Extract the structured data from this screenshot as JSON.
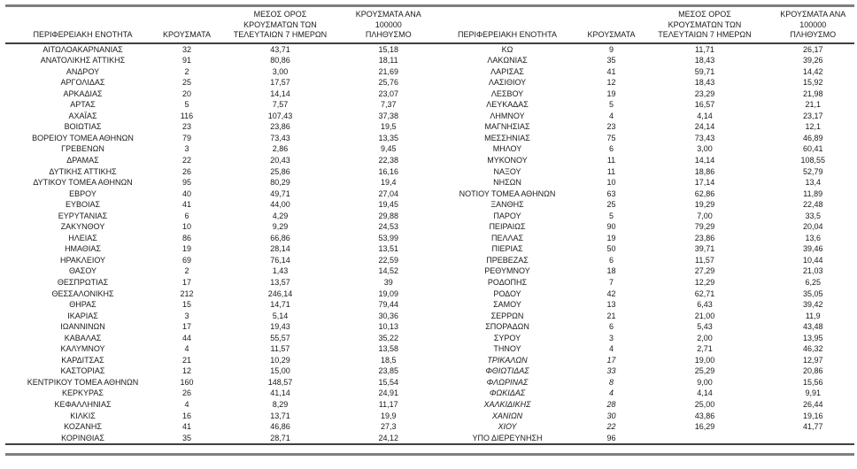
{
  "colors": {
    "outer_rule_gray": "#7f7f7f",
    "header_rule_dark": "#3f3f3f",
    "text": "#1a1a1a"
  },
  "columns": {
    "region": "ΠΕΡΙΦΕΡΕΙΑΚΗ ΕΝΟΤΗΤΑ",
    "cases": "ΚΡΟΥΣΜΑΤΑ",
    "avg7": "ΜΕΣΟΣ ΟΡΟΣ\nΚΡΟΥΣΜΑΤΩΝ ΤΩΝ\nΤΕΛΕΥΤΑΙΩΝ 7 ΗΜΕΡΩΝ",
    "per100k": "ΚΡΟΥΣΜΑΤΑ ΑΝΑ 100000\nΠΛΗΘΥΣΜΟ"
  },
  "tables": {
    "left": {
      "italic_row_indices": [],
      "rows": [
        [
          "ΑΙΤΩΛΟΑΚΑΡΝΑΝΙΑΣ",
          "32",
          "43,71",
          "15,18"
        ],
        [
          "ΑΝΑΤΟΛΙΚΗΣ ΑΤΤΙΚΗΣ",
          "91",
          "80,86",
          "18,11"
        ],
        [
          "ΑΝΔΡΟΥ",
          "2",
          "3,00",
          "21,69"
        ],
        [
          "ΑΡΓΟΛΙΔΑΣ",
          "25",
          "17,57",
          "25,76"
        ],
        [
          "ΑΡΚΑΔΙΑΣ",
          "20",
          "14,14",
          "23,07"
        ],
        [
          "ΑΡΤΑΣ",
          "5",
          "7,57",
          "7,37"
        ],
        [
          "ΑΧΑΪΑΣ",
          "116",
          "107,43",
          "37,38"
        ],
        [
          "ΒΟΙΩΤΙΑΣ",
          "23",
          "23,86",
          "19,5"
        ],
        [
          "ΒΟΡΕΙΟΥ ΤΟΜΕΑ ΑΘΗΝΩΝ",
          "79",
          "73,43",
          "13,35"
        ],
        [
          "ΓΡΕΒΕΝΩΝ",
          "3",
          "2,86",
          "9,45"
        ],
        [
          "ΔΡΑΜΑΣ",
          "22",
          "20,43",
          "22,38"
        ],
        [
          "ΔΥΤΙΚΗΣ ΑΤΤΙΚΗΣ",
          "26",
          "25,86",
          "16,16"
        ],
        [
          "ΔΥΤΙΚΟΥ ΤΟΜΕΑ ΑΘΗΝΩΝ",
          "95",
          "80,29",
          "19,4"
        ],
        [
          "ΕΒΡΟΥ",
          "40",
          "49,71",
          "27,04"
        ],
        [
          "ΕΥΒΟΙΑΣ",
          "41",
          "44,00",
          "19,45"
        ],
        [
          "ΕΥΡΥΤΑΝΙΑΣ",
          "6",
          "4,29",
          "29,88"
        ],
        [
          "ΖΑΚΥΝΘΟΥ",
          "10",
          "9,29",
          "24,53"
        ],
        [
          "ΗΛΕΙΑΣ",
          "86",
          "66,86",
          "53,99"
        ],
        [
          "ΗΜΑΘΙΑΣ",
          "19",
          "28,14",
          "13,51"
        ],
        [
          "ΗΡΑΚΛΕΙΟΥ",
          "69",
          "76,14",
          "22,59"
        ],
        [
          "ΘΑΣΟΥ",
          "2",
          "1,43",
          "14,52"
        ],
        [
          "ΘΕΣΠΡΩΤΙΑΣ",
          "17",
          "13,57",
          "39"
        ],
        [
          "ΘΕΣΣΑΛΟΝΙΚΗΣ",
          "212",
          "246,14",
          "19,09"
        ],
        [
          "ΘΗΡΑΣ",
          "15",
          "14,71",
          "79,44"
        ],
        [
          "ΙΚΑΡΙΑΣ",
          "3",
          "5,14",
          "30,36"
        ],
        [
          "ΙΩΑΝΝΙΝΩΝ",
          "17",
          "19,43",
          "10,13"
        ],
        [
          "ΚΑΒΑΛΑΣ",
          "44",
          "55,57",
          "35,22"
        ],
        [
          "ΚΑΛΥΜΝΟΥ",
          "4",
          "11,57",
          "13,58"
        ],
        [
          "ΚΑΡΔΙΤΣΑΣ",
          "21",
          "10,29",
          "18,5"
        ],
        [
          "ΚΑΣΤΟΡΙΑΣ",
          "12",
          "15,00",
          "23,85"
        ],
        [
          "ΚΕΝΤΡΙΚΟΥ ΤΟΜΕΑ ΑΘΗΝΩΝ",
          "160",
          "148,57",
          "15,54"
        ],
        [
          "ΚΕΡΚΥΡΑΣ",
          "26",
          "41,14",
          "24,91"
        ],
        [
          "ΚΕΦΑΛΛΗΝΙΑΣ",
          "4",
          "8,29",
          "11,17"
        ],
        [
          "ΚΙΛΚΙΣ",
          "16",
          "13,71",
          "19,9"
        ],
        [
          "ΚΟΖΑΝΗΣ",
          "41",
          "46,86",
          "27,3"
        ],
        [
          "ΚΟΡΙΝΘΙΑΣ",
          "35",
          "28,71",
          "24,12"
        ]
      ]
    },
    "right": {
      "italic_row_indices": [
        28,
        29,
        30,
        31,
        32,
        33,
        34
      ],
      "rows": [
        [
          "ΚΩ",
          "9",
          "11,71",
          "26,17"
        ],
        [
          "ΛΑΚΩΝΙΑΣ",
          "35",
          "18,43",
          "39,26"
        ],
        [
          "ΛΑΡΙΣΑΣ",
          "41",
          "59,71",
          "14,42"
        ],
        [
          "ΛΑΣΙΘΙΟΥ",
          "12",
          "18,43",
          "15,92"
        ],
        [
          "ΛΕΣΒΟΥ",
          "19",
          "23,29",
          "21,98"
        ],
        [
          "ΛΕΥΚΑΔΑΣ",
          "5",
          "16,57",
          "21,1"
        ],
        [
          "ΛΗΜΝΟΥ",
          "4",
          "4,14",
          "23,17"
        ],
        [
          "ΜΑΓΝΗΣΙΑΣ",
          "23",
          "24,14",
          "12,1"
        ],
        [
          "ΜΕΣΣΗΝΙΑΣ",
          "75",
          "73,43",
          "46,89"
        ],
        [
          "ΜΗΛΟΥ",
          "6",
          "3,00",
          "60,41"
        ],
        [
          "ΜΥΚΟΝΟΥ",
          "11",
          "14,14",
          "108,55"
        ],
        [
          "ΝΑΞΟΥ",
          "11",
          "18,86",
          "52,79"
        ],
        [
          "ΝΗΣΩΝ",
          "10",
          "17,14",
          "13,4"
        ],
        [
          "ΝΟΤΙΟΥ ΤΟΜΕΑ ΑΘΗΝΩΝ",
          "63",
          "62,86",
          "11,89"
        ],
        [
          "ΞΑΝΘΗΣ",
          "25",
          "19,29",
          "22,48"
        ],
        [
          "ΠΑΡΟΥ",
          "5",
          "7,00",
          "33,5"
        ],
        [
          "ΠΕΙΡΑΙΩΣ",
          "90",
          "79,29",
          "20,04"
        ],
        [
          "ΠΕΛΛΑΣ",
          "19",
          "23,86",
          "13,6"
        ],
        [
          "ΠΙΕΡΙΑΣ",
          "50",
          "39,71",
          "39,46"
        ],
        [
          "ΠΡΕΒΕΖΑΣ",
          "6",
          "11,57",
          "10,44"
        ],
        [
          "ΡΕΘΥΜΝΟΥ",
          "18",
          "27,29",
          "21,03"
        ],
        [
          "ΡΟΔΟΠΗΣ",
          "7",
          "12,29",
          "6,25"
        ],
        [
          "ΡΟΔΟΥ",
          "42",
          "62,71",
          "35,05"
        ],
        [
          "ΣΑΜΟΥ",
          "13",
          "6,43",
          "39,42"
        ],
        [
          "ΣΕΡΡΩΝ",
          "21",
          "21,00",
          "11,9"
        ],
        [
          "ΣΠΟΡΑΔΩΝ",
          "6",
          "5,43",
          "43,48"
        ],
        [
          "ΣΥΡΟΥ",
          "3",
          "2,00",
          "13,95"
        ],
        [
          "ΤΗΝΟΥ",
          "4",
          "2,71",
          "46,32"
        ],
        [
          "ΤΡΙΚΑΛΩΝ",
          "17",
          "19,00",
          "12,97"
        ],
        [
          "ΦΘΙΩΤΙΔΑΣ",
          "33",
          "25,29",
          "20,86"
        ],
        [
          "ΦΛΩΡΙΝΑΣ",
          "8",
          "9,00",
          "15,56"
        ],
        [
          "ΦΩΚΙΔΑΣ",
          "4",
          "4,14",
          "9,91"
        ],
        [
          "ΧΑΛΚΙΔΙΚΗΣ",
          "28",
          "25,00",
          "26,44"
        ],
        [
          "ΧΑΝΙΩΝ",
          "30",
          "43,86",
          "19,16"
        ],
        [
          "ΧΙΟΥ",
          "22",
          "16,29",
          "41,77"
        ],
        [
          "ΥΠΟ ΔΙΕΡΕΥΝΗΣΗ",
          "96",
          "",
          ""
        ]
      ]
    }
  }
}
